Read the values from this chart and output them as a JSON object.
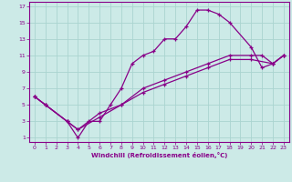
{
  "xlabel": "Windchill (Refroidissement éolien,°C)",
  "background_color": "#cceae7",
  "grid_color": "#aad4d0",
  "line_color": "#880088",
  "xlim": [
    -0.5,
    23.5
  ],
  "ylim": [
    0.5,
    17.5
  ],
  "xticks": [
    0,
    1,
    2,
    3,
    4,
    5,
    6,
    7,
    8,
    9,
    10,
    11,
    12,
    13,
    14,
    15,
    16,
    17,
    18,
    19,
    20,
    21,
    22,
    23
  ],
  "yticks": [
    1,
    3,
    5,
    7,
    9,
    11,
    13,
    15,
    17
  ],
  "line1_x": [
    0,
    1,
    3,
    4,
    5,
    6,
    7,
    8,
    9,
    10,
    11,
    12,
    13,
    14,
    15,
    16,
    17,
    18,
    20,
    21,
    22,
    23
  ],
  "line1_y": [
    6,
    5,
    3,
    1,
    3,
    3,
    5,
    7,
    10,
    11,
    11.5,
    13,
    13,
    14.5,
    16.5,
    16.5,
    16,
    15,
    12,
    9.5,
    10,
    11
  ],
  "line2_x": [
    0,
    1,
    3,
    4,
    6,
    8,
    10,
    12,
    14,
    16,
    18,
    20,
    21,
    22,
    23
  ],
  "line2_y": [
    6,
    5,
    3,
    2,
    4,
    5,
    7,
    8,
    9,
    10,
    11,
    11,
    11,
    10,
    11
  ],
  "line3_x": [
    0,
    1,
    3,
    4,
    6,
    8,
    10,
    12,
    14,
    16,
    18,
    20,
    22,
    23
  ],
  "line3_y": [
    6,
    5,
    3,
    2,
    3.5,
    5,
    6.5,
    7.5,
    8.5,
    9.5,
    10.5,
    10.5,
    10,
    11
  ]
}
